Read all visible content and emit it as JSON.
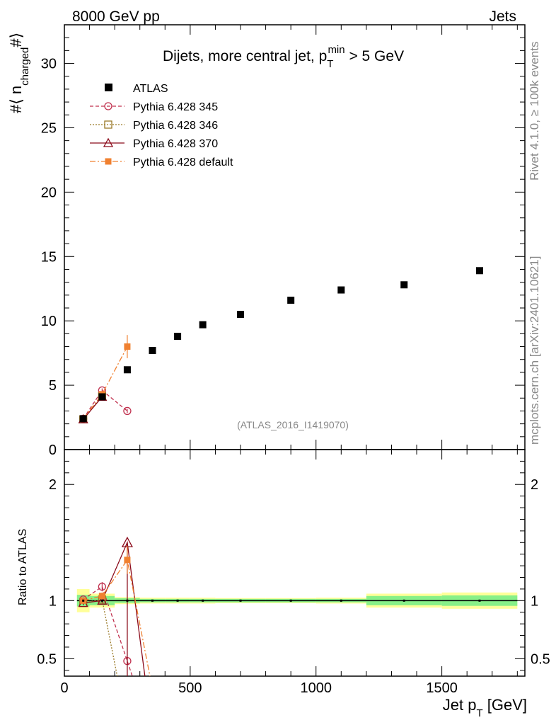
{
  "header": {
    "left": "8000 GeV pp",
    "right": "Jets"
  },
  "side_text": {
    "rivet": "Rivet 4.1.0, ≥ 100k events",
    "mcplots": "mcplots.cern.ch [arXiv:2401.10621]"
  },
  "chart_data": {
    "type": "scatter",
    "title_main": "Dijets, more central jet, p",
    "title_sub": "T",
    "title_sup": "min",
    "title_tail": " > 5 GeV",
    "watermark": "(ATLAS_2016_I1419070)",
    "ylabel_main": "#⟨ n",
    "ylabel_sub": "charged",
    "ylabel_tail": "#⟩",
    "ratio_ylabel": "Ratio to ATLAS",
    "xlabel_main": "Jet p",
    "xlabel_sub": "T",
    "xlabel_tail": " [GeV]",
    "xlim": [
      0,
      1830
    ],
    "ylim": [
      0,
      33
    ],
    "ratio_ylim": [
      0.35,
      2.3
    ],
    "x_ticks": [
      "0",
      "500",
      "1000",
      "1500"
    ],
    "x_tick_values": [
      0,
      500,
      1000,
      1500
    ],
    "y_ticks": [
      "0",
      "5",
      "10",
      "15",
      "20",
      "25",
      "30"
    ],
    "y_tick_values": [
      0,
      5,
      10,
      15,
      20,
      25,
      30
    ],
    "ratio_ticks": [
      "0.5",
      "1",
      "2"
    ],
    "ratio_tick_values": [
      0.5,
      1,
      2
    ],
    "atlas": {
      "name": "ATLAS",
      "x": [
        75,
        150,
        250,
        350,
        450,
        550,
        700,
        900,
        1100,
        1350,
        1650
      ],
      "y": [
        2.4,
        4.1,
        6.2,
        7.7,
        8.8,
        9.7,
        10.5,
        11.6,
        12.4,
        12.8,
        13.9
      ]
    },
    "bands": [
      {
        "xlo": 50,
        "xhi": 100,
        "inner": 0.05,
        "outer": 0.1
      },
      {
        "xlo": 100,
        "xhi": 200,
        "inner": 0.04,
        "outer": 0.06
      },
      {
        "xlo": 200,
        "xhi": 300,
        "inner": 0.02,
        "outer": 0.03
      },
      {
        "xlo": 300,
        "xhi": 400,
        "inner": 0.015,
        "outer": 0.025
      },
      {
        "xlo": 400,
        "xhi": 500,
        "inner": 0.015,
        "outer": 0.025
      },
      {
        "xlo": 500,
        "xhi": 600,
        "inner": 0.015,
        "outer": 0.025
      },
      {
        "xlo": 600,
        "xhi": 800,
        "inner": 0.015,
        "outer": 0.022
      },
      {
        "xlo": 800,
        "xhi": 1000,
        "inner": 0.015,
        "outer": 0.022
      },
      {
        "xlo": 1000,
        "xhi": 1200,
        "inner": 0.015,
        "outer": 0.025
      },
      {
        "xlo": 1200,
        "xhi": 1500,
        "inner": 0.04,
        "outer": 0.06
      },
      {
        "xlo": 1500,
        "xhi": 1800,
        "inner": 0.045,
        "outer": 0.07
      }
    ],
    "series": [
      {
        "name": "Pythia 6.428 345",
        "color": "#c0304e",
        "dash": "5,3",
        "marker": "circle-open",
        "x": [
          75,
          150,
          250
        ],
        "y": [
          2.4,
          4.6,
          3.0
        ],
        "yerr": [
          0.05,
          0.15,
          0.15
        ],
        "ratio": [
          1.01,
          1.12,
          0.48
        ],
        "ratio_err": [
          0.02,
          0.04,
          0.03
        ]
      },
      {
        "name": "Pythia 6.428 346",
        "color": "#9a7a28",
        "dash": "2,2",
        "marker": "square-open",
        "x": [
          75,
          150
        ],
        "y": [
          2.35,
          4.15
        ],
        "yerr": [
          0.05,
          0.1
        ],
        "ratio": [
          0.98,
          1.01
        ],
        "ratio_err": [
          0.02,
          0.02
        ]
      },
      {
        "name": "Pythia 6.428 370",
        "color": "#8b0a1a",
        "dash": "",
        "marker": "triangle-open",
        "x": [
          75,
          150
        ],
        "y": [
          2.35,
          4.1
        ],
        "yerr": [
          0.05,
          0.1
        ],
        "ratio": [
          0.98,
          1.0
        ],
        "ratio_err": [
          0.02,
          0.02
        ]
      },
      {
        "name": "Pythia 6.428 default",
        "color": "#f08030",
        "dash": "8,3,2,3",
        "marker": "square-filled",
        "x": [
          75,
          150,
          250
        ],
        "y": [
          2.4,
          4.3,
          8.0
        ],
        "yerr": [
          0.05,
          0.1,
          0.9
        ],
        "ratio": [
          1.0,
          1.04,
          1.35
        ],
        "ratio_err": [
          0.02,
          0.03,
          0.12
        ]
      }
    ],
    "ratio_extra": {
      "series370": {
        "x": [
          250
        ],
        "y": [
          1.5
        ],
        "drop_to_x": 320
      },
      "series345_drop_to_x": 270,
      "series346_drop_to_x": 210,
      "default_drop_to_x": 340
    }
  }
}
